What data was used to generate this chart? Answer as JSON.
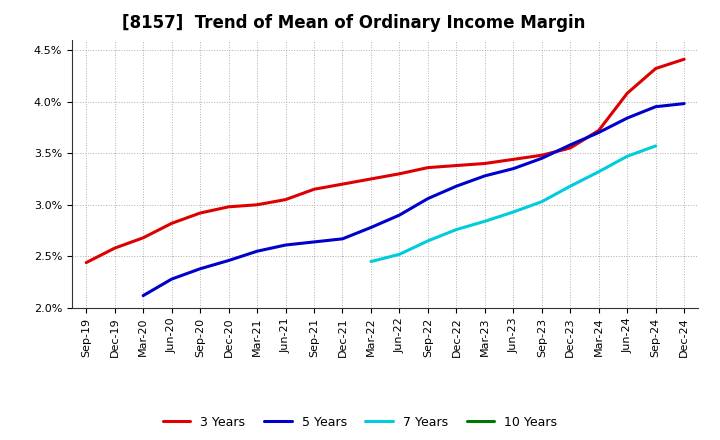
{
  "title": "[8157]  Trend of Mean of Ordinary Income Margin",
  "ylim": [
    0.02,
    0.046
  ],
  "yticks": [
    0.02,
    0.025,
    0.03,
    0.035,
    0.04,
    0.045
  ],
  "background_color": "#ffffff",
  "grid_color": "#b0b0b0",
  "title_fontsize": 12,
  "tick_fontsize": 8,
  "x_labels": [
    "Sep-19",
    "Dec-19",
    "Mar-20",
    "Jun-20",
    "Sep-20",
    "Dec-20",
    "Mar-21",
    "Jun-21",
    "Sep-21",
    "Dec-21",
    "Mar-22",
    "Jun-22",
    "Sep-22",
    "Dec-22",
    "Mar-23",
    "Jun-23",
    "Sep-23",
    "Dec-23",
    "Mar-24",
    "Jun-24",
    "Sep-24",
    "Dec-24"
  ],
  "series": [
    {
      "name": "3 Years",
      "color": "#dd0000",
      "data": [
        0.0244,
        0.0258,
        0.0268,
        0.0282,
        0.0292,
        0.0298,
        0.03,
        0.0305,
        0.0315,
        0.032,
        0.0325,
        0.033,
        0.0336,
        0.0338,
        0.034,
        0.0344,
        0.0348,
        0.0355,
        0.0372,
        0.0408,
        0.0432,
        0.0441
      ]
    },
    {
      "name": "5 Years",
      "color": "#0000cc",
      "data": [
        null,
        null,
        0.0212,
        0.0228,
        0.0238,
        0.0246,
        0.0255,
        0.0261,
        0.0264,
        0.0267,
        0.0278,
        0.029,
        0.0306,
        0.0318,
        0.0328,
        0.0335,
        0.0345,
        0.0358,
        0.037,
        0.0384,
        0.0395,
        0.0398
      ]
    },
    {
      "name": "7 Years",
      "color": "#00ccdd",
      "data": [
        null,
        null,
        null,
        null,
        null,
        null,
        null,
        null,
        null,
        null,
        0.0245,
        0.0252,
        0.0265,
        0.0276,
        0.0284,
        0.0293,
        0.0303,
        0.0318,
        0.0332,
        0.0347,
        0.0357,
        null
      ]
    },
    {
      "name": "10 Years",
      "color": "#007700",
      "data": [
        null,
        null,
        null,
        null,
        null,
        null,
        null,
        null,
        null,
        null,
        null,
        null,
        null,
        null,
        null,
        null,
        null,
        null,
        null,
        null,
        null,
        null
      ]
    }
  ]
}
